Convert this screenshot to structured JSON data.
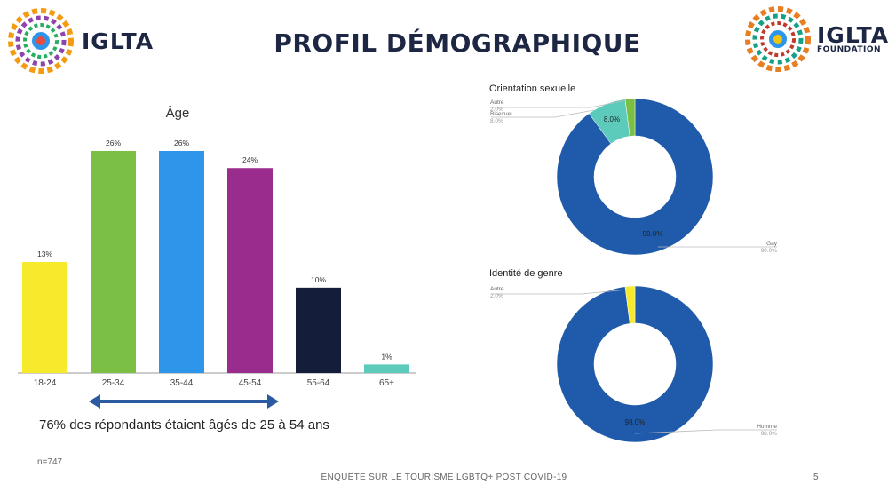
{
  "header": {
    "title": "PROFIL DÉMOGRAPHIQUE",
    "logo_left_text": "IGLTA",
    "logo_right_text": "IGLTA",
    "logo_right_sub": "FOUNDATION"
  },
  "note": "76% des répondants étaient âgés de 25 à 54 ans",
  "sample": "n=747",
  "footer": "ENQUÊTE SUR LE TOURISME LGBTQ+ POST COVID-19",
  "page_number": "5",
  "colors": {
    "navy": "#1d2744",
    "donut_blue": "#1f5baa",
    "teal": "#5ccbbb",
    "green": "#7bbf44",
    "yellow": "#f7ea2d",
    "arrow": "#2b5aa0"
  },
  "chart_data": [
    {
      "type": "bar",
      "title": "Âge",
      "categories": [
        "18-24",
        "25-34",
        "35-44",
        "45-54",
        "55-64",
        "65+"
      ],
      "values": [
        13,
        26,
        26,
        24,
        10,
        1
      ],
      "value_labels": [
        "13%",
        "26%",
        "26%",
        "24%",
        "10%",
        "1%"
      ],
      "colors": [
        "#f7ea2d",
        "#7bbf44",
        "#2e96ea",
        "#9a2c8d",
        "#141e3a",
        "#5ccbbb"
      ],
      "xlabel": "",
      "ylabel": "",
      "ylim": [
        0,
        26
      ],
      "grid": false
    },
    {
      "type": "pie",
      "title": "Orientation sexuelle",
      "series": [
        {
          "name": "Gay",
          "value": 90.0,
          "label": "90.0%",
          "color": "#1f5baa"
        },
        {
          "name": "Bisexuel",
          "value": 8.0,
          "label": "8.0%",
          "color": "#5ccbbb"
        },
        {
          "name": "Autre",
          "value": 2.0,
          "label": "2.0%",
          "color": "#7bbf44"
        }
      ]
    },
    {
      "type": "pie",
      "title": "Identité de genre",
      "series": [
        {
          "name": "Homme",
          "value": 98.0,
          "label": "98.0%",
          "color": "#1f5baa"
        },
        {
          "name": "Autre",
          "value": 2.0,
          "label": "2.0%",
          "color": "#f7ea2d"
        }
      ]
    }
  ]
}
